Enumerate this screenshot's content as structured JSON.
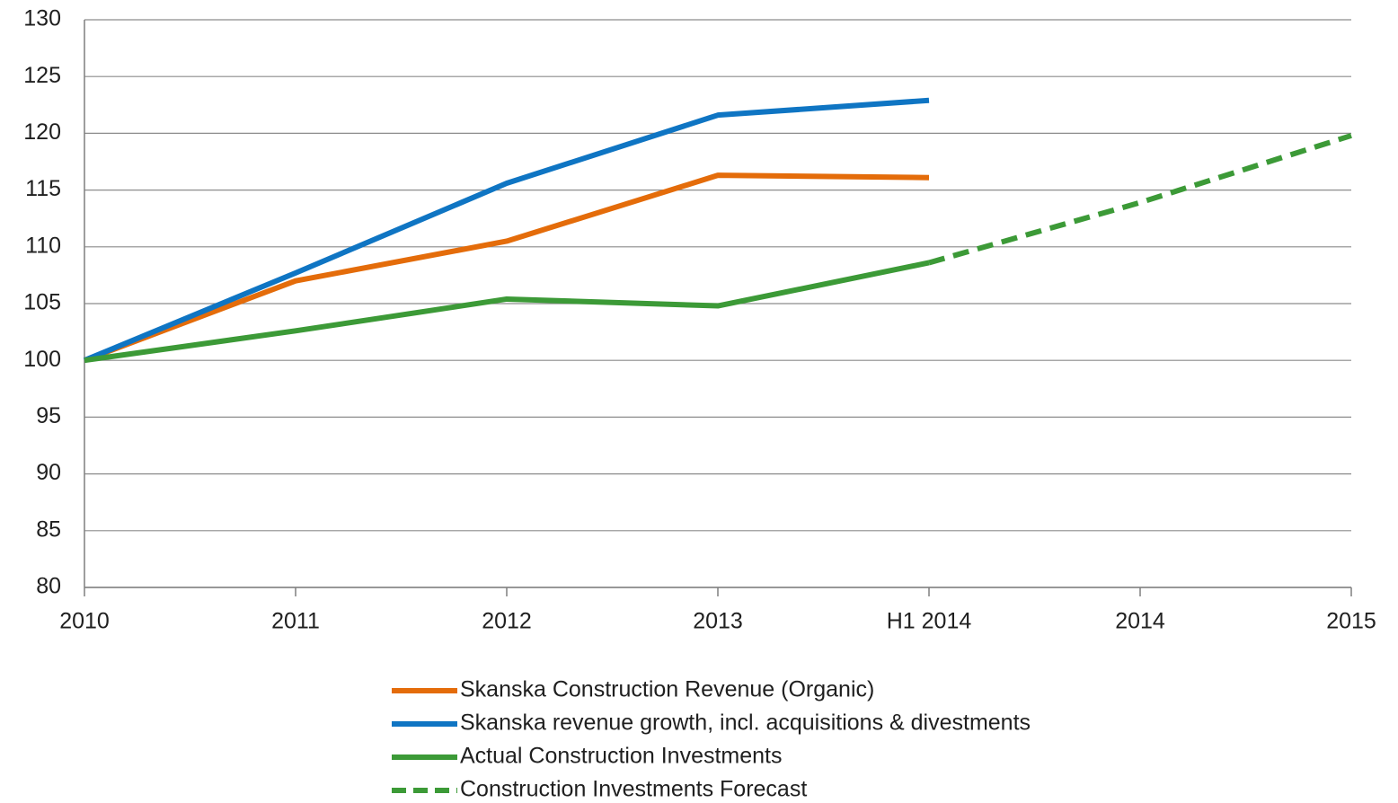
{
  "chart_data": {
    "type": "line",
    "categories": [
      "2010",
      "2011",
      "2012",
      "2013",
      "H1 2014",
      "2014",
      "2015"
    ],
    "series": [
      {
        "name": "Skanska Construction Revenue (Organic)",
        "color": "#e46c0a",
        "values": [
          100,
          107.0,
          110.5,
          116.3,
          116.1,
          null,
          null
        ]
      },
      {
        "name": "Skanska revenue growth, incl. acquisitions & divestments",
        "color": "#0f75c3",
        "values": [
          100,
          107.7,
          115.6,
          121.6,
          122.9,
          null,
          null
        ]
      },
      {
        "name": "Actual Construction Investments",
        "color": "#3c9a37",
        "values": [
          100,
          102.6,
          105.4,
          104.8,
          108.6,
          null,
          null
        ]
      },
      {
        "name": "Construction Investments Forecast",
        "color": "#3c9a37",
        "dashed": true,
        "values": [
          null,
          null,
          null,
          null,
          108.6,
          113.9,
          119.8
        ]
      }
    ],
    "ylim": [
      80,
      130
    ],
    "yticks": [
      80,
      85,
      90,
      95,
      100,
      105,
      110,
      115,
      120,
      125,
      130
    ],
    "grid": true,
    "legend": "bottom"
  }
}
